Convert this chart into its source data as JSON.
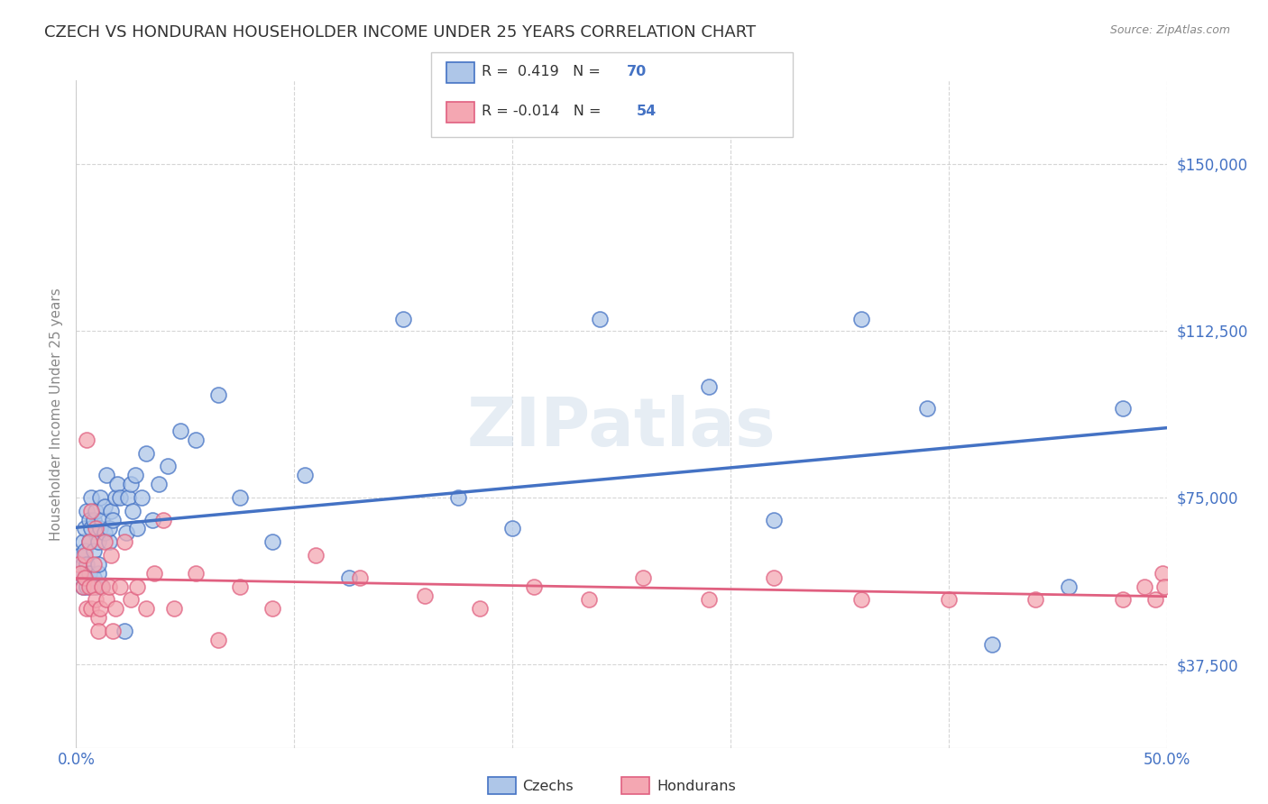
{
  "title": "CZECH VS HONDURAN HOUSEHOLDER INCOME UNDER 25 YEARS CORRELATION CHART",
  "source": "Source: ZipAtlas.com",
  "ylabel": "Householder Income Under 25 years",
  "xlim": [
    0.0,
    0.5
  ],
  "ylim": [
    18750,
    168750
  ],
  "yticks": [
    37500,
    75000,
    112500,
    150000
  ],
  "ytick_labels": [
    "$37,500",
    "$75,000",
    "$112,500",
    "$150,000"
  ],
  "background_color": "#ffffff",
  "grid_color": "#cccccc",
  "czech_color": "#aec6e8",
  "honduran_color": "#f4a7b2",
  "czech_line_color": "#4472c4",
  "honduran_line_color": "#e06080",
  "watermark": "ZIPatlas",
  "czech_x": [
    0.001,
    0.002,
    0.002,
    0.003,
    0.003,
    0.003,
    0.004,
    0.004,
    0.004,
    0.005,
    0.005,
    0.005,
    0.006,
    0.006,
    0.006,
    0.007,
    0.007,
    0.007,
    0.008,
    0.008,
    0.008,
    0.009,
    0.009,
    0.01,
    0.01,
    0.01,
    0.011,
    0.011,
    0.012,
    0.012,
    0.013,
    0.013,
    0.014,
    0.015,
    0.015,
    0.016,
    0.017,
    0.018,
    0.019,
    0.02,
    0.022,
    0.023,
    0.024,
    0.025,
    0.026,
    0.027,
    0.028,
    0.03,
    0.032,
    0.035,
    0.038,
    0.042,
    0.048,
    0.055,
    0.065,
    0.075,
    0.09,
    0.105,
    0.125,
    0.15,
    0.175,
    0.2,
    0.24,
    0.29,
    0.32,
    0.36,
    0.39,
    0.42,
    0.455,
    0.48
  ],
  "czech_y": [
    60000,
    58000,
    62000,
    55000,
    65000,
    60000,
    57000,
    63000,
    68000,
    55000,
    60000,
    72000,
    58000,
    65000,
    70000,
    55000,
    68000,
    75000,
    57000,
    63000,
    70000,
    55000,
    72000,
    58000,
    65000,
    60000,
    68000,
    75000,
    55000,
    70000,
    73000,
    67000,
    80000,
    65000,
    68000,
    72000,
    70000,
    75000,
    78000,
    75000,
    45000,
    67000,
    75000,
    78000,
    72000,
    80000,
    68000,
    75000,
    85000,
    70000,
    78000,
    82000,
    90000,
    88000,
    98000,
    75000,
    65000,
    80000,
    57000,
    115000,
    75000,
    68000,
    115000,
    100000,
    70000,
    115000,
    95000,
    42000,
    55000,
    95000
  ],
  "honduran_x": [
    0.001,
    0.002,
    0.003,
    0.004,
    0.004,
    0.005,
    0.005,
    0.006,
    0.006,
    0.007,
    0.007,
    0.008,
    0.008,
    0.009,
    0.009,
    0.01,
    0.01,
    0.011,
    0.012,
    0.013,
    0.014,
    0.015,
    0.016,
    0.017,
    0.018,
    0.02,
    0.022,
    0.025,
    0.028,
    0.032,
    0.036,
    0.04,
    0.045,
    0.055,
    0.065,
    0.075,
    0.09,
    0.11,
    0.13,
    0.16,
    0.185,
    0.21,
    0.235,
    0.26,
    0.29,
    0.32,
    0.36,
    0.4,
    0.44,
    0.48,
    0.49,
    0.495,
    0.498,
    0.499
  ],
  "honduran_y": [
    60000,
    58000,
    55000,
    62000,
    57000,
    50000,
    88000,
    65000,
    55000,
    50000,
    72000,
    55000,
    60000,
    52000,
    68000,
    48000,
    45000,
    50000,
    55000,
    65000,
    52000,
    55000,
    62000,
    45000,
    50000,
    55000,
    65000,
    52000,
    55000,
    50000,
    58000,
    70000,
    50000,
    58000,
    43000,
    55000,
    50000,
    62000,
    57000,
    53000,
    50000,
    55000,
    52000,
    57000,
    52000,
    57000,
    52000,
    52000,
    52000,
    52000,
    55000,
    52000,
    58000,
    55000
  ]
}
